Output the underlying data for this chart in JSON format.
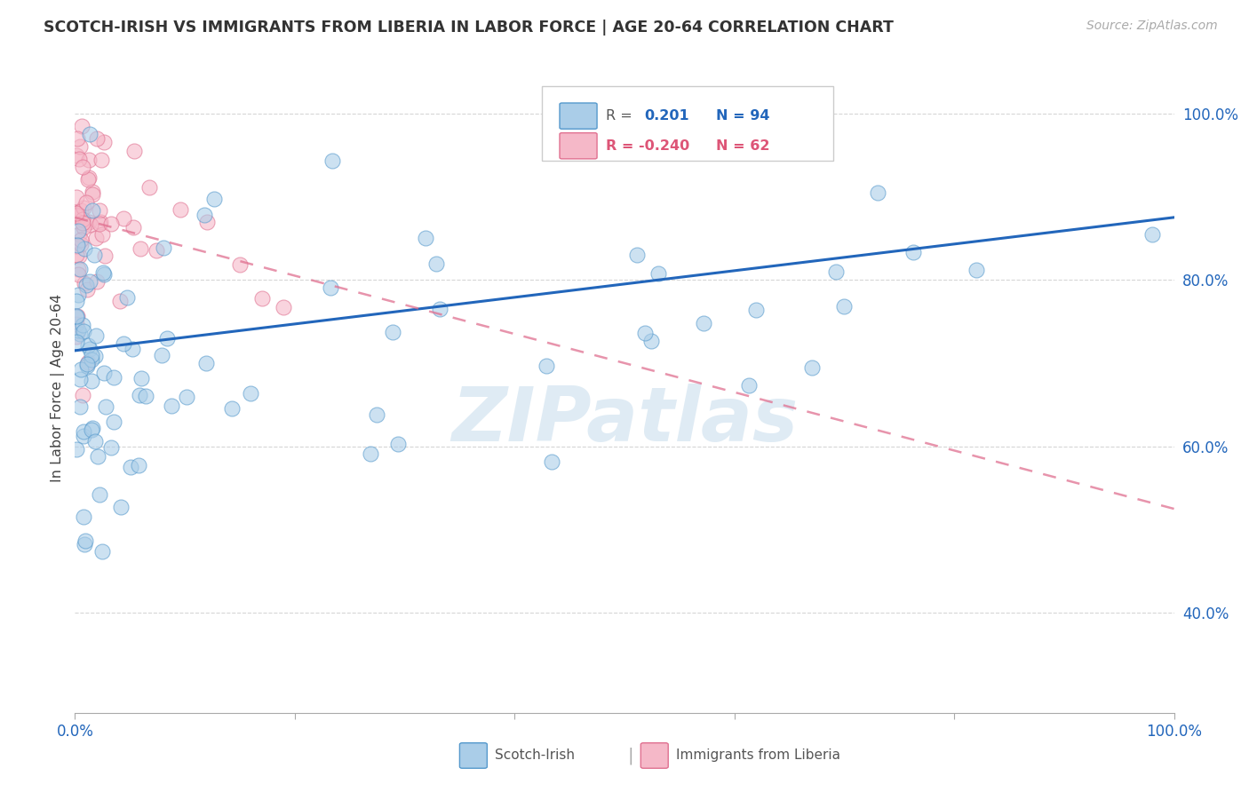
{
  "title": "SCOTCH-IRISH VS IMMIGRANTS FROM LIBERIA IN LABOR FORCE | AGE 20-64 CORRELATION CHART",
  "source": "Source: ZipAtlas.com",
  "ylabel": "In Labor Force | Age 20-64",
  "legend_label1": "Scotch-Irish",
  "legend_label2": "Immigrants from Liberia",
  "blue_fill": "#aacde8",
  "blue_edge": "#5599cc",
  "blue_line": "#2266bb",
  "pink_fill": "#f5b8c8",
  "pink_edge": "#e07090",
  "pink_line": "#dd5577",
  "watermark": "ZIPatlas",
  "R_si": 0.201,
  "N_si": 94,
  "R_lib": -0.24,
  "N_lib": 62,
  "blue_trend_x0": 0.0,
  "blue_trend_y0": 0.715,
  "blue_trend_x1": 1.0,
  "blue_trend_y1": 0.875,
  "pink_trend_x0": 0.0,
  "pink_trend_y0": 0.875,
  "pink_trend_x1": 1.0,
  "pink_trend_y1": 0.525,
  "ymin": 0.28,
  "ymax": 1.06,
  "xmin": 0.0,
  "xmax": 1.0
}
